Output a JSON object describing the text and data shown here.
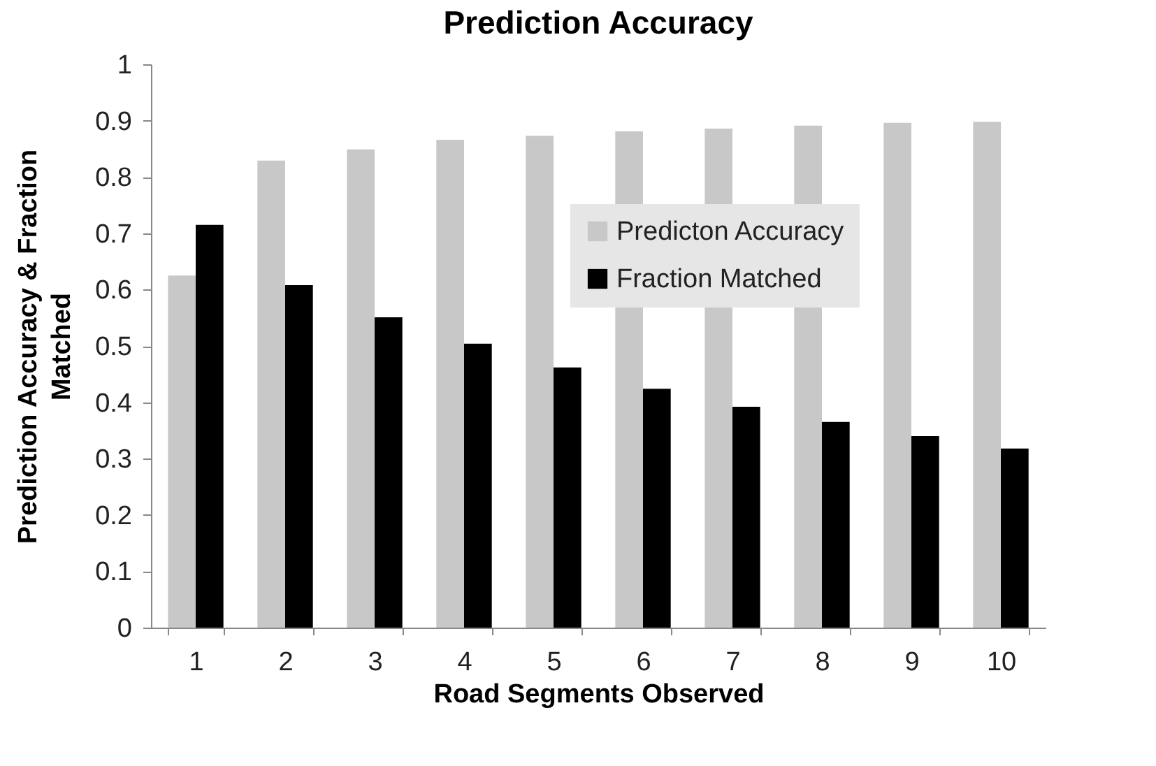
{
  "chart_data": {
    "type": "bar",
    "title": "Prediction Accuracy",
    "xlabel": "Road Segments Observed",
    "ylabel": "Prediction Accuracy & Fraction Matched",
    "categories": [
      "1",
      "2",
      "3",
      "4",
      "5",
      "6",
      "7",
      "8",
      "9",
      "10"
    ],
    "series": [
      {
        "name": "Predicton Accuracy",
        "color": "#c8c8c8",
        "values": [
          0.625,
          0.829,
          0.849,
          0.866,
          0.873,
          0.881,
          0.886,
          0.891,
          0.896,
          0.898
        ]
      },
      {
        "name": "Fraction Matched",
        "color": "#000000",
        "values": [
          0.715,
          0.608,
          0.551,
          0.504,
          0.462,
          0.424,
          0.392,
          0.365,
          0.34,
          0.318
        ]
      }
    ],
    "ylim": [
      0,
      1
    ],
    "yticks": [
      0,
      0.1,
      0.2,
      0.3,
      0.4,
      0.5,
      0.6,
      0.7,
      0.8,
      0.9,
      1
    ],
    "grid": false,
    "legend": "top right"
  }
}
